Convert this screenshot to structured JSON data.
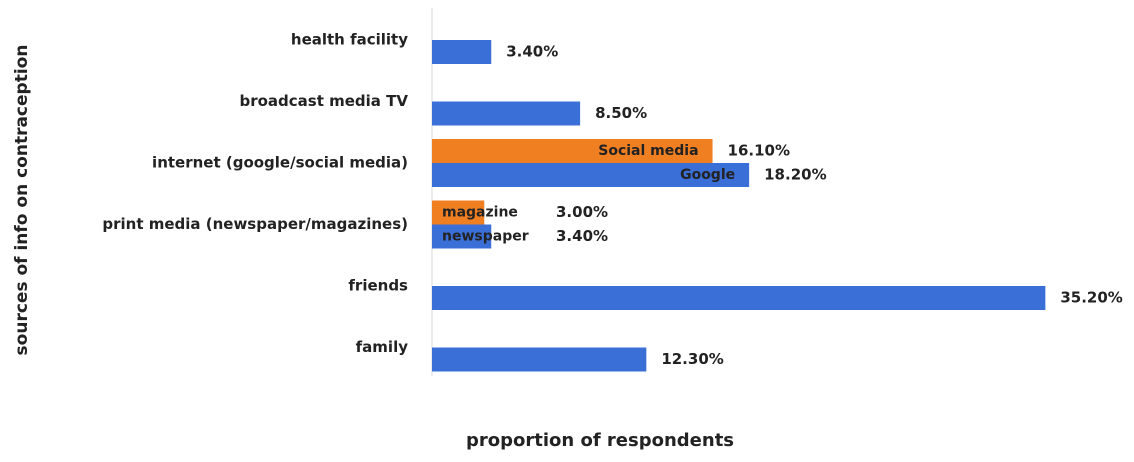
{
  "chart_data": {
    "type": "barh",
    "x_label": "proportion of respondents",
    "y_label": "sources of info on contraception",
    "categories": [
      "health facility",
      "broadcast media TV",
      "internet (google/social media)",
      "print media (newspaper/magazines)",
      "friends",
      "family"
    ],
    "series": [
      {
        "color": "#3a6fd8",
        "values": [
          3.4,
          8.5,
          18.2,
          3.4,
          35.2,
          12.3
        ],
        "value_labels": [
          "3.40%",
          "8.50%",
          "18.20%",
          "3.40%",
          "35.20%",
          "12.30%"
        ],
        "bar_labels": [
          null,
          null,
          "Google",
          "newspaper",
          null,
          null
        ]
      },
      {
        "color": "#f07f22",
        "values": [
          null,
          null,
          16.1,
          3.0,
          null,
          null
        ],
        "value_labels": [
          null,
          null,
          "16.10%",
          "3.00%",
          null,
          null
        ],
        "bar_labels": [
          null,
          null,
          "Social media",
          "magazine",
          null,
          null
        ]
      }
    ],
    "xlim": [
      0,
      40
    ]
  }
}
